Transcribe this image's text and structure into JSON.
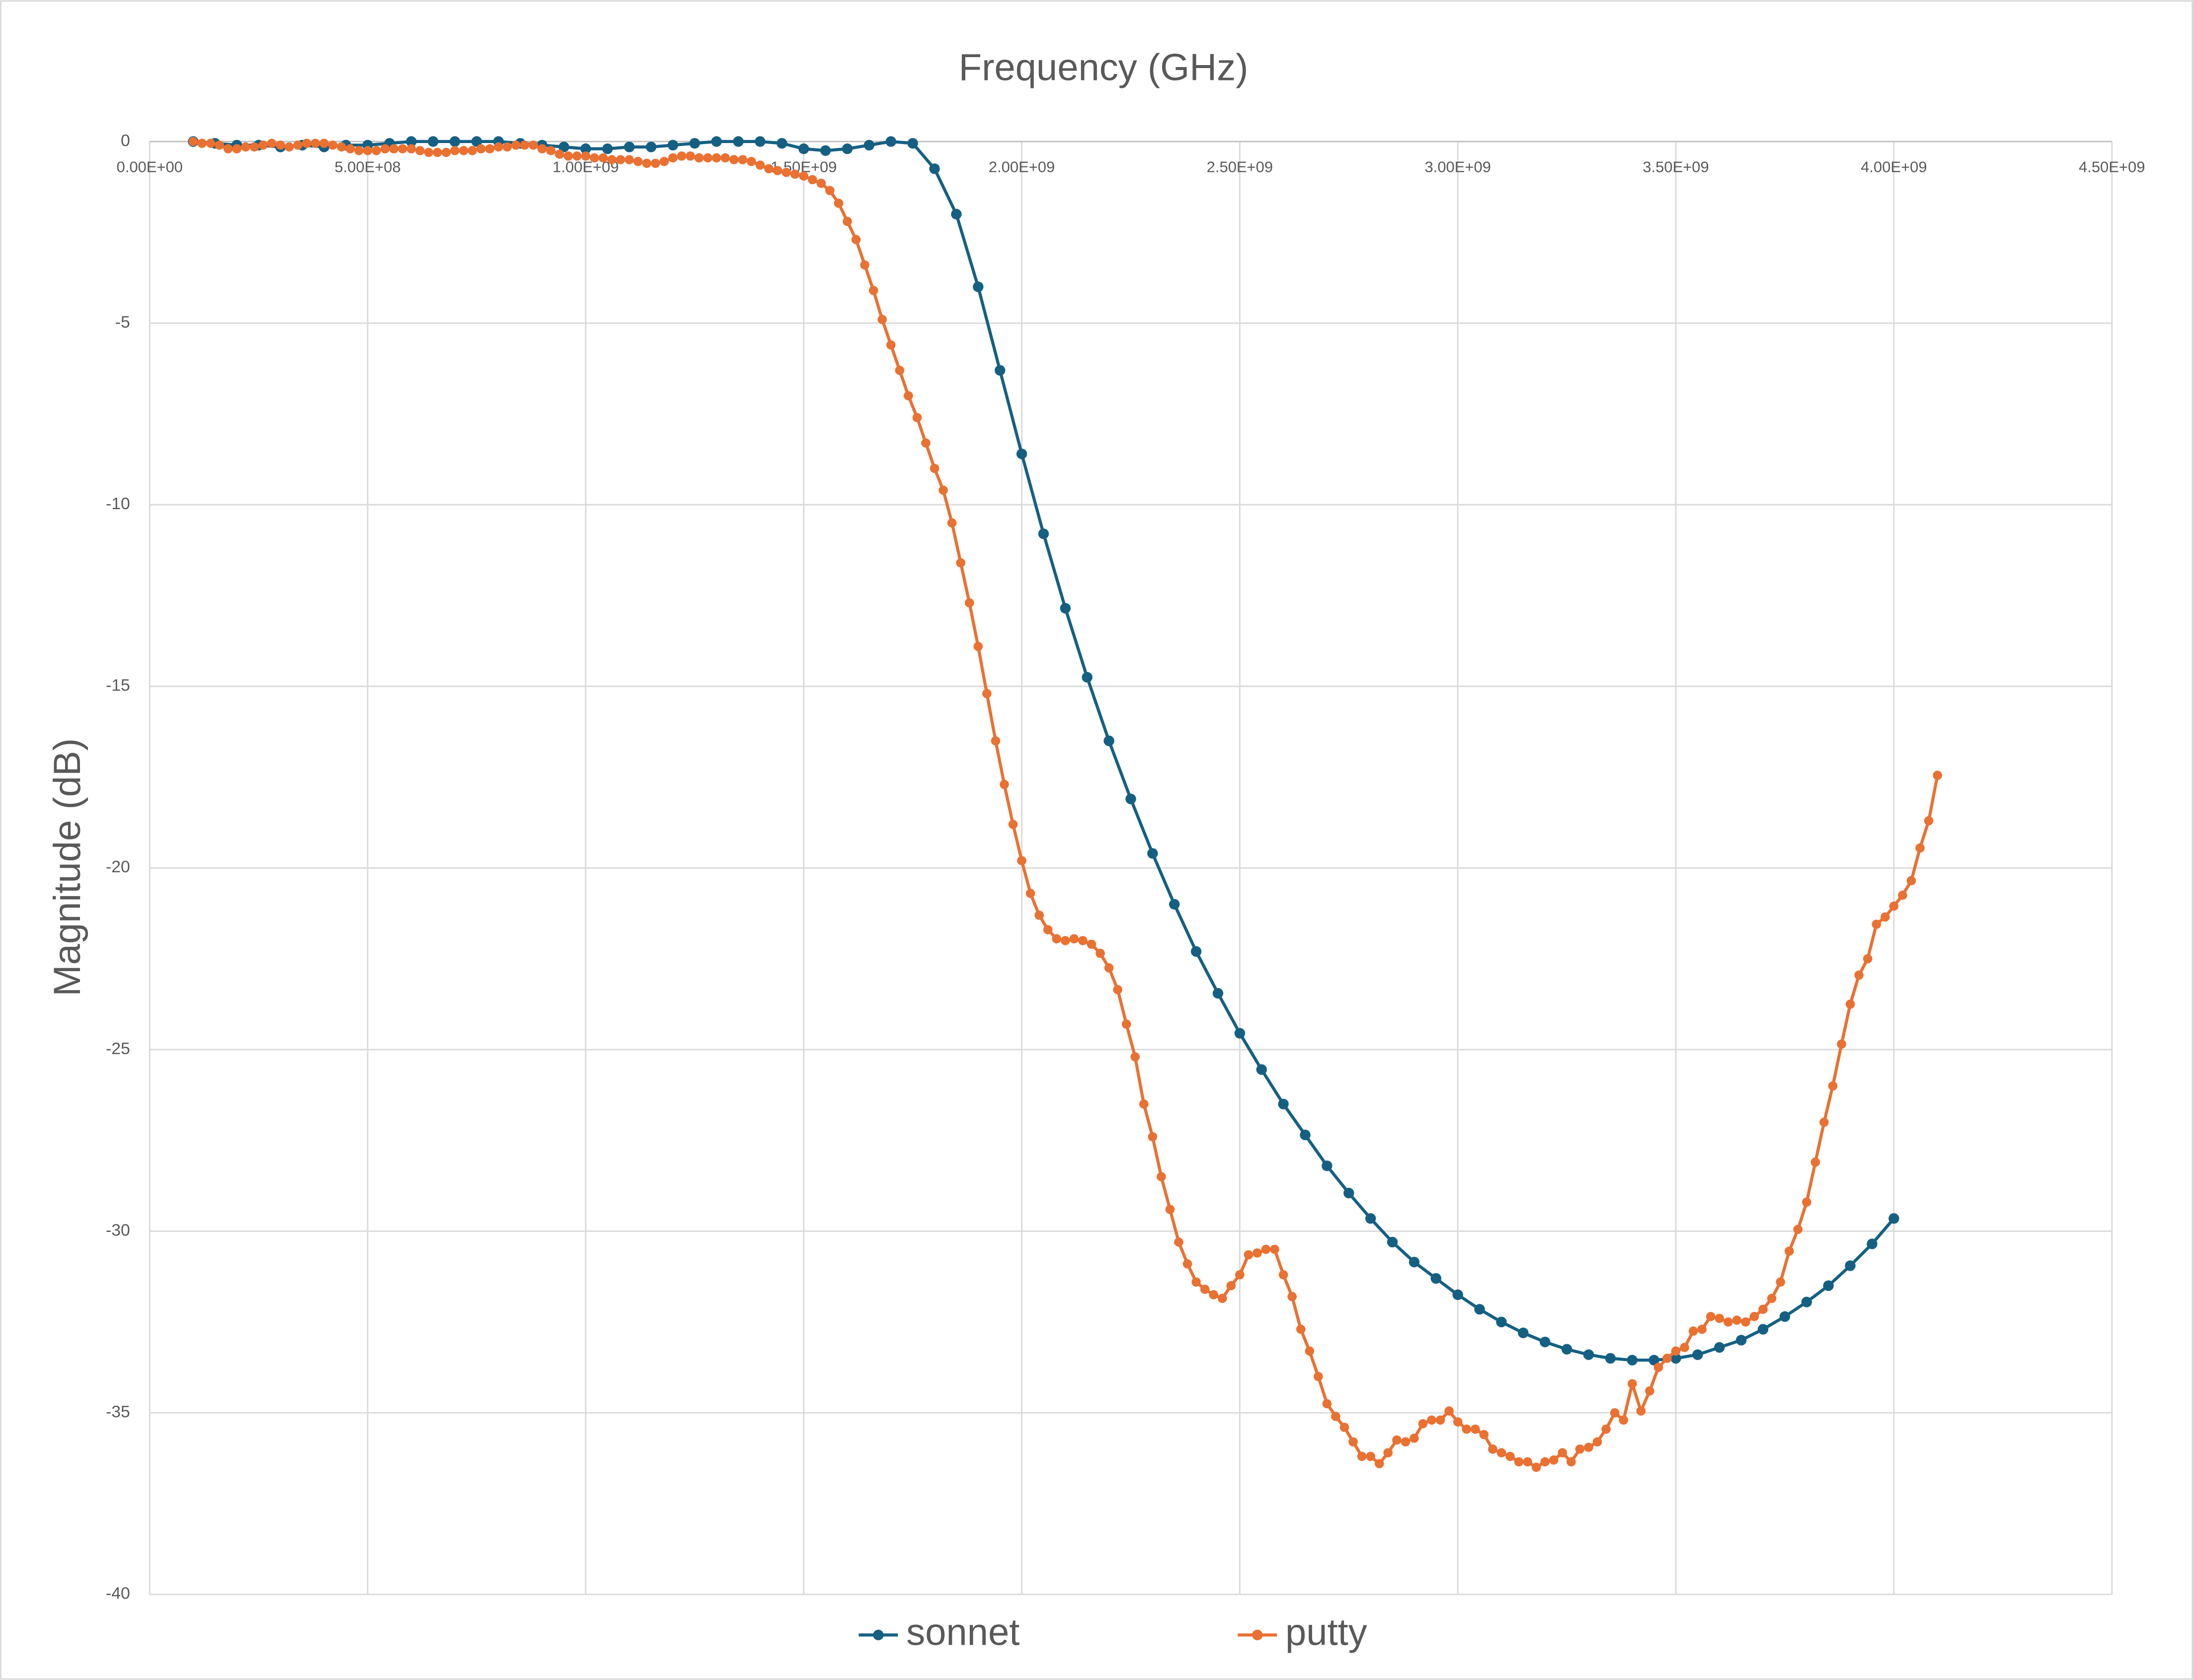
{
  "chart_data": {
    "type": "line",
    "title": "Frequency (GHz)",
    "y_label": "Magnitude (dB)",
    "xlim": [
      0,
      4500000000.0
    ],
    "xticks": [
      {
        "value": 0,
        "label": "0.00E+00"
      },
      {
        "value": 500000000.0,
        "label": "5.00E+08"
      },
      {
        "value": 1000000000.0,
        "label": "1.00E+09"
      },
      {
        "value": 1500000000.0,
        "label": "1.50E+09"
      },
      {
        "value": 2000000000.0,
        "label": "2.00E+09"
      },
      {
        "value": 2500000000.0,
        "label": "2.50E+09"
      },
      {
        "value": 3000000000.0,
        "label": "3.00E+09"
      },
      {
        "value": 3500000000.0,
        "label": "3.50E+09"
      },
      {
        "value": 4000000000.0,
        "label": "4.00E+09"
      },
      {
        "value": 4500000000.0,
        "label": "4.50E+09"
      }
    ],
    "ylim": [
      -40,
      0
    ],
    "yticks": [
      0,
      -5,
      -10,
      -15,
      -20,
      -25,
      -30,
      -35,
      -40
    ],
    "grid": true,
    "legend": "bottom",
    "series": [
      {
        "name": "sonnet",
        "color": "#156082",
        "x": [
          100000000.0,
          150000000.0,
          200000000.0,
          250000000.0,
          300000000.0,
          350000000.0,
          400000000.0,
          450000000.0,
          500000000.0,
          550000000.0,
          600000000.0,
          650000000.0,
          700000000.0,
          750000000.0,
          800000000.0,
          850000000.0,
          900000000.0,
          950000000.0,
          1000000000.0,
          1050000000.0,
          1100000000.0,
          1150000000.0,
          1200000000.0,
          1250000000.0,
          1300000000.0,
          1350000000.0,
          1400000000.0,
          1450000000.0,
          1500000000.0,
          1550000000.0,
          1600000000.0,
          1650000000.0,
          1700000000.0,
          1750000000.0,
          1800000000.0,
          1850000000.0,
          1900000000.0,
          1950000000.0,
          2000000000.0,
          2050000000.0,
          2100000000.0,
          2150000000.0,
          2200000000.0,
          2250000000.0,
          2300000000.0,
          2350000000.0,
          2400000000.0,
          2450000000.0,
          2500000000.0,
          2550000000.0,
          2600000000.0,
          2650000000.0,
          2700000000.0,
          2750000000.0,
          2800000000.0,
          2850000000.0,
          2900000000.0,
          2950000000.0,
          3000000000.0,
          3050000000.0,
          3100000000.0,
          3150000000.0,
          3200000000.0,
          3250000000.0,
          3300000000.0,
          3350000000.0,
          3400000000.0,
          3450000000.0,
          3500000000.0,
          3550000000.0,
          3600000000.0,
          3650000000.0,
          3700000000.0,
          3750000000.0,
          3800000000.0,
          3850000000.0,
          3900000000.0,
          3950000000.0,
          4000000000.0
        ],
        "values": [
          0,
          -0.05,
          -0.1,
          -0.1,
          -0.15,
          -0.1,
          -0.15,
          -0.1,
          -0.1,
          -0.05,
          0,
          0,
          0,
          0,
          0,
          -0.05,
          -0.1,
          -0.15,
          -0.2,
          -0.2,
          -0.15,
          -0.15,
          -0.1,
          -0.05,
          0,
          0,
          0,
          -0.05,
          -0.2,
          -0.25,
          -0.2,
          -0.1,
          0,
          -0.05,
          -0.75,
          -2.0,
          -4.0,
          -6.3,
          -8.6,
          -10.8,
          -12.85,
          -14.75,
          -16.5,
          -18.1,
          -19.6,
          -21.0,
          -22.3,
          -23.45,
          -24.55,
          -25.55,
          -26.5,
          -27.35,
          -28.2,
          -28.95,
          -29.65,
          -30.3,
          -30.85,
          -31.3,
          -31.75,
          -32.15,
          -32.5,
          -32.8,
          -33.05,
          -33.25,
          -33.4,
          -33.5,
          -33.55,
          -33.55,
          -33.5,
          -33.4,
          -33.2,
          -33.0,
          -32.7,
          -32.35,
          -31.95,
          -31.5,
          -30.95,
          -30.35,
          -29.65
        ]
      },
      {
        "name": "putty",
        "color": "#e97132",
        "x": [
          100000000.0,
          120000000.0,
          140000000.0,
          160000000.0,
          180000000.0,
          200000000.0,
          220000000.0,
          240000000.0,
          260000000.0,
          280000000.0,
          300000000.0,
          320000000.0,
          340000000.0,
          360000000.0,
          380000000.0,
          400000000.0,
          420000000.0,
          440000000.0,
          460000000.0,
          480000000.0,
          500000000.0,
          520000000.0,
          540000000.0,
          560000000.0,
          580000000.0,
          600000000.0,
          620000000.0,
          640000000.0,
          660000000.0,
          680000000.0,
          700000000.0,
          720000000.0,
          740000000.0,
          760000000.0,
          780000000.0,
          800000000.0,
          820000000.0,
          840000000.0,
          860000000.0,
          880000000.0,
          900000000.0,
          920000000.0,
          940000000.0,
          960000000.0,
          980000000.0,
          1000000000.0,
          1020000000.0,
          1040000000.0,
          1060000000.0,
          1080000000.0,
          1100000000.0,
          1120000000.0,
          1140000000.0,
          1160000000.0,
          1180000000.0,
          1200000000.0,
          1220000000.0,
          1240000000.0,
          1260000000.0,
          1280000000.0,
          1300000000.0,
          1320000000.0,
          1340000000.0,
          1360000000.0,
          1380000000.0,
          1400000000.0,
          1420000000.0,
          1440000000.0,
          1460000000.0,
          1480000000.0,
          1500000000.0,
          1520000000.0,
          1540000000.0,
          1560000000.0,
          1580000000.0,
          1600000000.0,
          1620000000.0,
          1640000000.0,
          1660000000.0,
          1680000000.0,
          1700000000.0,
          1720000000.0,
          1740000000.0,
          1760000000.0,
          1780000000.0,
          1800000000.0,
          1820000000.0,
          1840000000.0,
          1860000000.0,
          1880000000.0,
          1900000000.0,
          1920000000.0,
          1940000000.0,
          1960000000.0,
          1980000000.0,
          2000000000.0,
          2020000000.0,
          2040000000.0,
          2060000000.0,
          2080000000.0,
          2100000000.0,
          2120000000.0,
          2140000000.0,
          2160000000.0,
          2180000000.0,
          2200000000.0,
          2220000000.0,
          2240000000.0,
          2260000000.0,
          2280000000.0,
          2300000000.0,
          2320000000.0,
          2340000000.0,
          2360000000.0,
          2380000000.0,
          2400000000.0,
          2420000000.0,
          2440000000.0,
          2460000000.0,
          2480000000.0,
          2500000000.0,
          2520000000.0,
          2540000000.0,
          2560000000.0,
          2580000000.0,
          2600000000.0,
          2620000000.0,
          2640000000.0,
          2660000000.0,
          2680000000.0,
          2700000000.0,
          2720000000.0,
          2740000000.0,
          2760000000.0,
          2780000000.0,
          2800000000.0,
          2820000000.0,
          2840000000.0,
          2860000000.0,
          2880000000.0,
          2900000000.0,
          2920000000.0,
          2940000000.0,
          2960000000.0,
          2980000000.0,
          3000000000.0,
          3020000000.0,
          3040000000.0,
          3060000000.0,
          3080000000.0,
          3100000000.0,
          3120000000.0,
          3140000000.0,
          3160000000.0,
          3180000000.0,
          3200000000.0,
          3220000000.0,
          3240000000.0,
          3260000000.0,
          3280000000.0,
          3300000000.0,
          3320000000.0,
          3340000000.0,
          3360000000.0,
          3380000000.0,
          3400000000.0,
          3420000000.0,
          3440000000.0,
          3460000000.0,
          3480000000.0,
          3500000000.0,
          3520000000.0,
          3540000000.0,
          3560000000.0,
          3580000000.0,
          3600000000.0,
          3620000000.0,
          3640000000.0,
          3660000000.0,
          3680000000.0,
          3700000000.0,
          3720000000.0,
          3740000000.0,
          3760000000.0,
          3780000000.0,
          3800000000.0,
          3820000000.0,
          3840000000.0,
          3860000000.0,
          3880000000.0,
          3900000000.0,
          3920000000.0,
          3940000000.0,
          3960000000.0,
          3980000000.0,
          4000000000.0,
          4020000000.0,
          4040000000.0,
          4060000000.0,
          4080000000.0,
          4100000000.0
        ],
        "values": [
          0,
          -0.05,
          -0.05,
          -0.1,
          -0.2,
          -0.2,
          -0.15,
          -0.15,
          -0.1,
          -0.05,
          -0.1,
          -0.15,
          -0.1,
          -0.05,
          -0.05,
          -0.05,
          -0.1,
          -0.15,
          -0.2,
          -0.25,
          -0.25,
          -0.25,
          -0.2,
          -0.2,
          -0.2,
          -0.2,
          -0.25,
          -0.3,
          -0.3,
          -0.3,
          -0.25,
          -0.25,
          -0.25,
          -0.2,
          -0.2,
          -0.15,
          -0.15,
          -0.1,
          -0.1,
          -0.1,
          -0.2,
          -0.25,
          -0.35,
          -0.4,
          -0.4,
          -0.4,
          -0.45,
          -0.45,
          -0.5,
          -0.5,
          -0.5,
          -0.55,
          -0.6,
          -0.6,
          -0.55,
          -0.45,
          -0.4,
          -0.4,
          -0.45,
          -0.45,
          -0.45,
          -0.45,
          -0.5,
          -0.5,
          -0.55,
          -0.65,
          -0.75,
          -0.8,
          -0.85,
          -0.9,
          -0.95,
          -1.05,
          -1.15,
          -1.35,
          -1.7,
          -2.2,
          -2.7,
          -3.4,
          -4.1,
          -4.9,
          -5.6,
          -6.3,
          -7.0,
          -7.6,
          -8.3,
          -9.0,
          -9.6,
          -10.5,
          -11.6,
          -12.7,
          -13.9,
          -15.2,
          -16.5,
          -17.7,
          -18.8,
          -19.8,
          -20.7,
          -21.3,
          -21.7,
          -21.95,
          -22.0,
          -21.95,
          -22.0,
          -22.1,
          -22.35,
          -22.75,
          -23.35,
          -24.3,
          -25.2,
          -26.5,
          -27.4,
          -28.5,
          -29.4,
          -30.3,
          -30.9,
          -31.4,
          -31.6,
          -31.75,
          -31.85,
          -31.5,
          -31.2,
          -30.65,
          -30.6,
          -30.5,
          -30.5,
          -31.2,
          -31.8,
          -32.7,
          -33.3,
          -34.0,
          -34.75,
          -35.1,
          -35.4,
          -35.8,
          -36.2,
          -36.2,
          -36.4,
          -36.1,
          -35.75,
          -35.8,
          -35.7,
          -35.3,
          -35.2,
          -35.2,
          -34.95,
          -35.25,
          -35.45,
          -35.45,
          -35.6,
          -36.0,
          -36.1,
          -36.2,
          -36.35,
          -36.35,
          -36.5,
          -36.35,
          -36.3,
          -36.1,
          -36.35,
          -36.0,
          -35.95,
          -35.8,
          -35.45,
          -35.0,
          -35.2,
          -34.2,
          -34.95,
          -34.4,
          -33.75,
          -33.5,
          -33.3,
          -33.2,
          -32.75,
          -32.7,
          -32.35,
          -32.4,
          -32.5,
          -32.45,
          -32.5,
          -32.35,
          -32.15,
          -31.85,
          -31.4,
          -30.55,
          -29.95,
          -29.2,
          -28.1,
          -27.0,
          -26.0,
          -24.85,
          -23.75,
          -22.95,
          -22.5,
          -21.55,
          -21.35,
          -21.05,
          -20.75,
          -20.35,
          -19.45,
          -18.7,
          -17.45
        ]
      }
    ]
  }
}
